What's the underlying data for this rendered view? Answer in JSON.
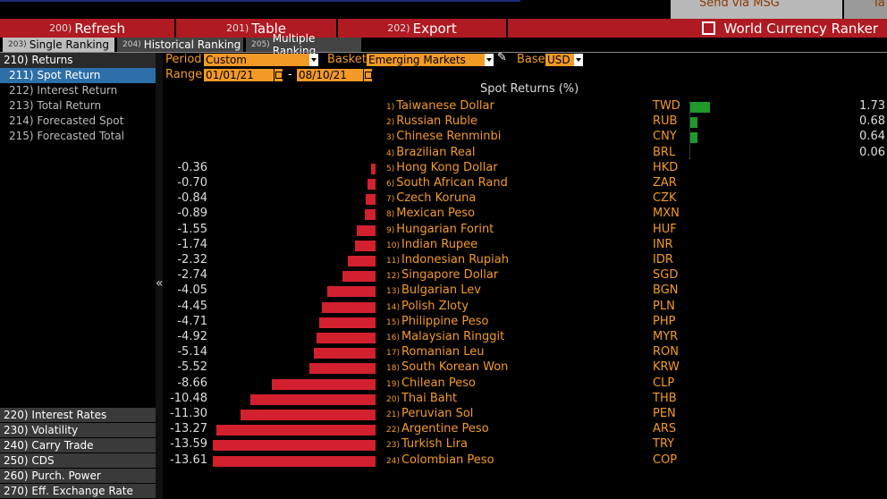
{
  "top": {
    "send_msg": "Send via MSG",
    "corner_text": "Ta"
  },
  "toolbar": {
    "refresh": {
      "num": "200)",
      "label": "Refresh"
    },
    "table": {
      "num": "201)",
      "label": "Table"
    },
    "export": {
      "num": "202)",
      "label": "Export"
    },
    "title": "World Currency Ranker"
  },
  "tabs": [
    {
      "num": "203)",
      "label": "Single Ranking"
    },
    {
      "num": "204)",
      "label": "Historical Ranking"
    },
    {
      "num": "205)",
      "label": "Multiple Ranking"
    }
  ],
  "sidebar": {
    "top_items": [
      "210) Returns",
      "211) Spot Return",
      "212) Interest Return",
      "213) Total Return",
      "214) Forecasted Spot",
      "215) Forecasted Total"
    ],
    "bottom_items": [
      "220) Interest Rates",
      "230) Volatility",
      "240) Carry Trade",
      "250) CDS",
      "260) Purch. Power",
      "270) Eff. Exchange Rate"
    ]
  },
  "controls": {
    "period_label": "Period",
    "period_value": "Custom",
    "basket_label": "Basket",
    "basket_value": "Emerging Markets",
    "base_label": "Base",
    "base_value": "USD",
    "range_label": "Range",
    "range_start": "01/01/21",
    "range_dash": "-",
    "range_end": "08/10/21"
  },
  "colors": {
    "accent": "#f39a26",
    "toolbar": "#b01a22",
    "negative": "#d3202e",
    "positive": "#1e9a2a",
    "selected": "#2d6fa8"
  },
  "chart_data": {
    "type": "bar",
    "title": "Spot Returns (%)",
    "rows": [
      {
        "rank": "1)",
        "name": "Taiwanese Dollar",
        "code": "TWD",
        "value": 1.73,
        "label": "1.73"
      },
      {
        "rank": "2)",
        "name": "Russian Ruble",
        "code": "RUB",
        "value": 0.68,
        "label": "0.68"
      },
      {
        "rank": "3)",
        "name": "Chinese Renminbi",
        "code": "CNY",
        "value": 0.64,
        "label": "0.64"
      },
      {
        "rank": "4)",
        "name": "Brazilian Real",
        "code": "BRL",
        "value": 0.06,
        "label": "0.06"
      },
      {
        "rank": "5)",
        "name": "Hong Kong Dollar",
        "code": "HKD",
        "value": -0.36,
        "label": "-0.36"
      },
      {
        "rank": "6)",
        "name": "South African Rand",
        "code": "ZAR",
        "value": -0.7,
        "label": "-0.70"
      },
      {
        "rank": "7)",
        "name": "Czech Koruna",
        "code": "CZK",
        "value": -0.84,
        "label": "-0.84"
      },
      {
        "rank": "8)",
        "name": "Mexican Peso",
        "code": "MXN",
        "value": -0.89,
        "label": "-0.89"
      },
      {
        "rank": "9)",
        "name": "Hungarian Forint",
        "code": "HUF",
        "value": -1.55,
        "label": "-1.55"
      },
      {
        "rank": "10)",
        "name": "Indian Rupee",
        "code": "INR",
        "value": -1.74,
        "label": "-1.74"
      },
      {
        "rank": "11)",
        "name": "Indonesian Rupiah",
        "code": "IDR",
        "value": -2.32,
        "label": "-2.32"
      },
      {
        "rank": "12)",
        "name": "Singapore Dollar",
        "code": "SGD",
        "value": -2.74,
        "label": "-2.74"
      },
      {
        "rank": "13)",
        "name": "Bulgarian Lev",
        "code": "BGN",
        "value": -4.05,
        "label": "-4.05"
      },
      {
        "rank": "14)",
        "name": "Polish Zloty",
        "code": "PLN",
        "value": -4.45,
        "label": "-4.45"
      },
      {
        "rank": "15)",
        "name": "Philippine Peso",
        "code": "PHP",
        "value": -4.71,
        "label": "-4.71"
      },
      {
        "rank": "16)",
        "name": "Malaysian Ringgit",
        "code": "MYR",
        "value": -4.92,
        "label": "-4.92"
      },
      {
        "rank": "17)",
        "name": "Romanian Leu",
        "code": "RON",
        "value": -5.14,
        "label": "-5.14"
      },
      {
        "rank": "18)",
        "name": "South Korean Won",
        "code": "KRW",
        "value": -5.52,
        "label": "-5.52"
      },
      {
        "rank": "19)",
        "name": "Chilean Peso",
        "code": "CLP",
        "value": -8.66,
        "label": "-8.66"
      },
      {
        "rank": "20)",
        "name": "Thai Baht",
        "code": "THB",
        "value": -10.48,
        "label": "-10.48"
      },
      {
        "rank": "21)",
        "name": "Peruvian Sol",
        "code": "PEN",
        "value": -11.3,
        "label": "-11.30"
      },
      {
        "rank": "22)",
        "name": "Argentine Peso",
        "code": "ARS",
        "value": -13.27,
        "label": "-13.27"
      },
      {
        "rank": "23)",
        "name": "Turkish Lira",
        "code": "TRY",
        "value": -13.59,
        "label": "-13.59"
      },
      {
        "rank": "24)",
        "name": "Colombian Peso",
        "code": "COP",
        "value": -13.61,
        "label": "-13.61"
      }
    ]
  }
}
